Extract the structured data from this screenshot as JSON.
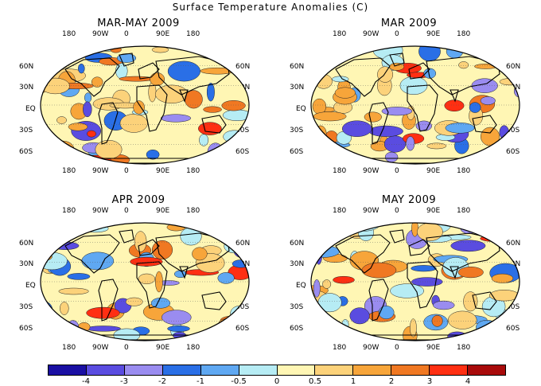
{
  "title": "Surface Temperature Anomalies (C)",
  "panels": [
    {
      "id": "mam",
      "title": "MAR-MAY 2009"
    },
    {
      "id": "mar",
      "title": "MAR 2009"
    },
    {
      "id": "apr",
      "title": "APR 2009"
    },
    {
      "id": "may",
      "title": "MAY 2009"
    }
  ],
  "lon_labels_top": [
    "180",
    "90W",
    "0",
    "90E",
    "180"
  ],
  "lon_labels_bottom": [
    "180",
    "90W",
    "0",
    "90E",
    "180"
  ],
  "lat_labels": [
    "60N",
    "30N",
    "EQ",
    "30S",
    "60S"
  ],
  "colorbar": {
    "colors": [
      "#1a0fa3",
      "#5a4ce0",
      "#9a8cf0",
      "#2a6fe6",
      "#5fa8f2",
      "#b6ecf4",
      "#fff6b4",
      "#fcd27a",
      "#f7a53a",
      "#f07822",
      "#ff2f12",
      "#a80a0a"
    ],
    "tick_labels": [
      "-4",
      "-3",
      "-2",
      "-1",
      "-0.5",
      "0",
      "0.5",
      "1",
      "2",
      "3",
      "4"
    ]
  }
}
